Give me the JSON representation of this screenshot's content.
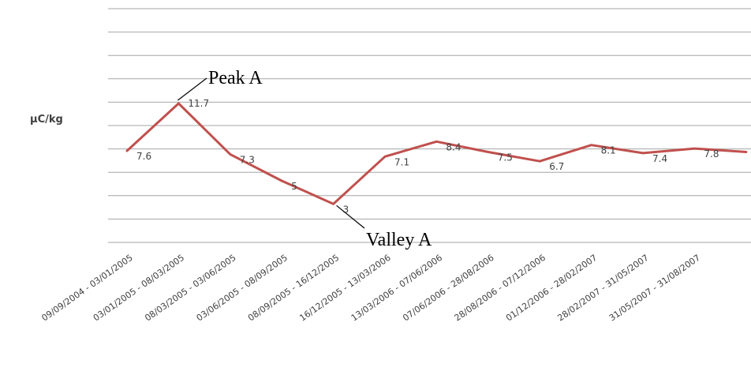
{
  "chart_data": {
    "type": "line",
    "title": "",
    "xlabel": "",
    "ylabel": "µC/kg",
    "grid": true,
    "categories": [
      "09/09/2004 - 03/01/2005",
      "03/01/2005 - 08/03/2005",
      "08/03/2005 - 03/06/2005",
      "03/06/2005 - 08/09/2005",
      "08/09/2005 - 16/12/2005",
      "16/12/2005 - 13/03/2006",
      "13/03/2006 - 07/06/2006",
      "07/06/2006 - 28/08/2006",
      "28/08/2006 - 07/12/2006",
      "01/12/2006 - 28/02/2007",
      "28/02/2007 - 31/05/2007",
      "31/05/2007 - 31/08/2007",
      ""
    ],
    "series": [
      {
        "color": "#c0504d",
        "values": [
          7.6,
          11.7,
          7.3,
          5,
          3,
          7.1,
          8.4,
          7.5,
          6.7,
          8.1,
          7.4,
          7.8,
          7.5
        ],
        "labels": [
          "7.6",
          "11.7",
          "7.3",
          "5",
          "3",
          "7.1",
          "8.4",
          "7.5",
          "6.7",
          "8.1",
          "7.4",
          "7.8",
          ""
        ]
      }
    ],
    "annotations": [
      {
        "text": "Peak A",
        "category_index": 1
      },
      {
        "text": "Valley A",
        "category_index": 4
      }
    ]
  }
}
